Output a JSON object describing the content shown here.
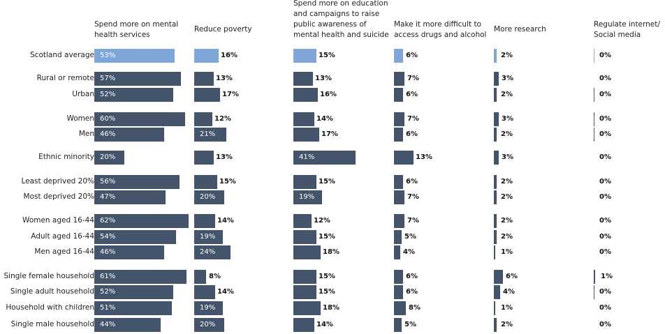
{
  "chart_data": {
    "type": "bar",
    "orientation": "horizontal",
    "title": "",
    "xlabel": "",
    "ylabel": "",
    "xlim": [
      0,
      100
    ],
    "grid": false,
    "legend": "none",
    "highlight_color": "#7fa6d8",
    "bar_color": "#44546a",
    "columns": [
      "Spend more on mental health services",
      "Reduce poverty",
      "Spend more on education and campaigns to raise public awareness of mental health and suicide",
      "Make it more difficult to access drugs and alcohol",
      "More research",
      "Regulate internet/ Social media"
    ],
    "column_lines": [
      [
        "Spend more on mental",
        "health services"
      ],
      [
        "Reduce poverty"
      ],
      [
        "Spend more on education",
        "and campaigns to raise",
        "public awareness of",
        "mental health and suicide"
      ],
      [
        "Make it more difficult to",
        "access drugs and alcohol"
      ],
      [
        "More research"
      ],
      [
        "Regulate internet/",
        "Social media"
      ]
    ],
    "categories": [
      "Scotland average",
      "Rural or remote",
      "Urban",
      "Women",
      "Men",
      "Ethnic minority",
      "Least deprived 20%",
      "Most deprived 20%",
      "Women aged 16-44",
      "Adult aged 16-44",
      "Men aged 16-44",
      "Single female household",
      "Single adult household",
      "Household with children",
      "Single male household"
    ],
    "values": [
      [
        53,
        16,
        15,
        6,
        2,
        0
      ],
      [
        57,
        13,
        13,
        7,
        3,
        0
      ],
      [
        52,
        17,
        16,
        6,
        2,
        0
      ],
      [
        60,
        12,
        14,
        7,
        3,
        0
      ],
      [
        46,
        21,
        17,
        6,
        2,
        0
      ],
      [
        20,
        13,
        41,
        13,
        3,
        0
      ],
      [
        56,
        15,
        15,
        6,
        2,
        0
      ],
      [
        47,
        20,
        19,
        7,
        2,
        0
      ],
      [
        62,
        14,
        12,
        7,
        2,
        0
      ],
      [
        54,
        19,
        15,
        5,
        2,
        0
      ],
      [
        46,
        24,
        18,
        4,
        1,
        0
      ],
      [
        61,
        8,
        15,
        6,
        6,
        1
      ],
      [
        52,
        14,
        15,
        6,
        4,
        0
      ],
      [
        51,
        19,
        18,
        8,
        1,
        0
      ],
      [
        44,
        20,
        14,
        5,
        2,
        0
      ]
    ]
  }
}
